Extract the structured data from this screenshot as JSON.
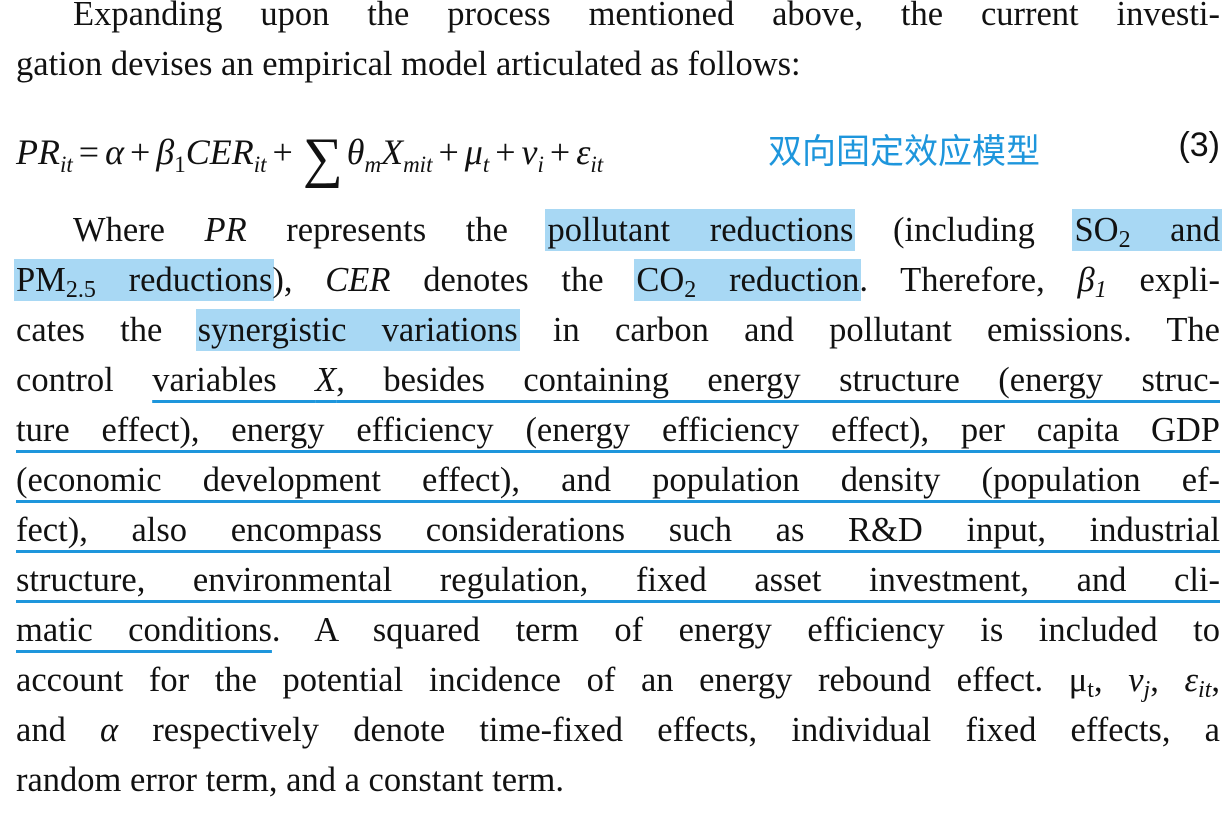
{
  "intro": {
    "line1": "Expanding upon the process mentioned above, the current investi-",
    "line2": "gation devises an empirical model articulated as follows:"
  },
  "equation": {
    "annotation": "双向固定效应模型",
    "number": "(3)"
  },
  "para": {
    "l3_a": "Where ",
    "l3_pr": "PR",
    "l3_b": " represents the ",
    "l3_hl1": "pollutant reductions",
    "l3_c": " (including ",
    "l3_hl2": "SO",
    "l3_hl2_sub": "2",
    "l3_hl2_b": " and",
    "l4_hl1": "PM",
    "l4_hl1_sub": "2.5",
    "l4_hl1_b": " reductions",
    "l4_a": "), ",
    "l4_cer": "CER",
    "l4_b": " denotes the ",
    "l4_hl2": "CO",
    "l4_hl2_sub": "2",
    "l4_hl2_b": " reduction",
    "l4_c": ". Therefore, ",
    "l4_beta": "β",
    "l4_beta_sub": "1",
    "l4_d": " expli-",
    "l5_a": "cates the ",
    "l5_hl": "synergistic variations",
    "l5_b": " in carbon and pollutant emissions. The",
    "l6_a": "control ",
    "l6_ul1": "variables ",
    "l6_x": "X",
    "l6_ul2": ", besides containing energy structure (energy struc-",
    "l7": "ture effect), energy efficiency (energy efficiency effect), per capita GDP",
    "l8": "(economic development effect), and population density (population ef-",
    "l9": "fect), also encompass considerations such as R&D input, industrial",
    "l10": "structure, environmental regulation, fixed asset investment, and cli-",
    "l11_ul": "matic conditions",
    "l11_b": ". A squared term of energy efficiency is included to",
    "l12_a": "account for the potential incidence of an energy rebound effect. μ",
    "l12_sub1": "t",
    "l12_b": ", ",
    "l12_nu": "ν",
    "l12_sub2": "j",
    "l12_c": ", ",
    "l12_eps": "ε",
    "l12_sub3": "it",
    "l12_d": ",",
    "l13_a": "and ",
    "l13_alpha": "α",
    "l13_b": " respectively denote time-fixed effects, individual fixed effects, a",
    "l14": "random error term, and a constant term."
  }
}
